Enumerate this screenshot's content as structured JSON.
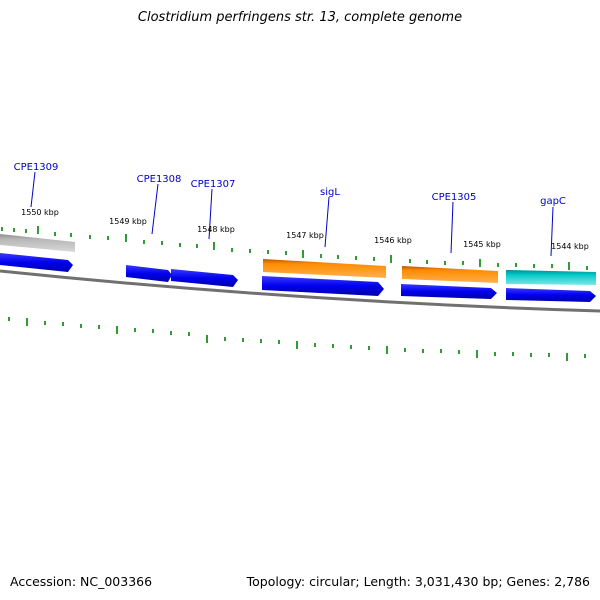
{
  "title": "Clostridium perfringens str. 13, complete genome",
  "footer": {
    "accession": "Accession: NC_003366",
    "summary": "Topology: circular; Length: 3,031,430 bp; Genes: 2,786"
  },
  "gene_labels": [
    "CPE1309",
    "CPE1308",
    "CPE1307",
    "sigL",
    "CPE1305",
    "gapC"
  ],
  "kbp_labels": [
    "1550 kbp",
    "1549 kbp",
    "1548 kbp",
    "1547 kbp",
    "1546 kbp",
    "1545 kbp",
    "1544 kbp"
  ],
  "colors": {
    "label_blue": "#0000cc",
    "tick_green": "#008000",
    "cds_blue": "#0000ee",
    "gene_orange": "#ff8c00",
    "gene_cyan": "#00c0c0",
    "gray_feature": "#b0b0b0",
    "backbone": "#808080"
  }
}
